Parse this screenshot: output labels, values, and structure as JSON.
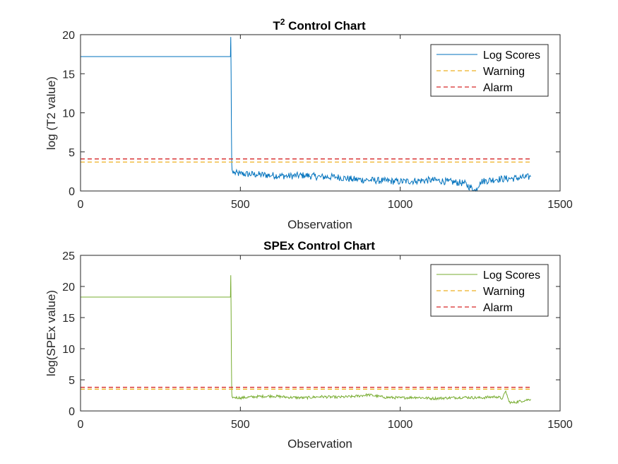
{
  "chart_data": [
    {
      "type": "line",
      "title": "T2 Control Chart",
      "title_main": "T",
      "title_sup": "2",
      "title_rest": " Control Chart",
      "xlabel": "Observation",
      "ylabel": "log (T2 value)",
      "xlim": [
        0,
        1500
      ],
      "ylim": [
        0,
        20
      ],
      "x_ticks": [
        0,
        500,
        1000,
        1500
      ],
      "y_ticks": [
        0,
        5,
        10,
        15,
        20
      ],
      "x_tick_labels": [
        "0",
        "500",
        "1000",
        "1500"
      ],
      "y_tick_labels": [
        "0",
        "5",
        "10",
        "15",
        "20"
      ],
      "grid": false,
      "legend_position": "top-right",
      "series": [
        {
          "name": "Log Scores",
          "color": "#0072BD",
          "style": "solid",
          "x": [
            0,
            469,
            470,
            471,
            472,
            473,
            474,
            475,
            476,
            477,
            478,
            480,
            500,
            550,
            600,
            650,
            700,
            750,
            800,
            850,
            900,
            950,
            1000,
            1050,
            1100,
            1150,
            1200,
            1236,
            1250,
            1300,
            1350,
            1408
          ],
          "y": [
            17.2,
            17.2,
            19.7,
            15.0,
            8.0,
            3.5,
            2.7,
            2.6,
            2.4,
            2.3,
            2.5,
            2.3,
            2.2,
            2.1,
            2.0,
            1.9,
            2.0,
            1.8,
            1.8,
            1.5,
            1.4,
            1.3,
            1.2,
            1.3,
            1.4,
            1.2,
            1.0,
            0.0,
            1.2,
            1.5,
            1.6,
            1.8
          ]
        },
        {
          "name": "Warning",
          "color": "#EDB120",
          "style": "dashed",
          "x": [
            0,
            1408
          ],
          "y": [
            3.7,
            3.7
          ]
        },
        {
          "name": "Alarm",
          "color": "#D62728",
          "style": "dashed",
          "x": [
            0,
            1408
          ],
          "y": [
            4.1,
            4.1
          ]
        }
      ]
    },
    {
      "type": "line",
      "title": "SPEx Control Chart",
      "title_main": "SPEx Control Chart",
      "title_sup": "",
      "title_rest": "",
      "xlabel": "Observation",
      "ylabel": "log(SPEx value)",
      "xlim": [
        0,
        1500
      ],
      "ylim": [
        0,
        25
      ],
      "x_ticks": [
        0,
        500,
        1000,
        1500
      ],
      "y_ticks": [
        0,
        5,
        10,
        15,
        20,
        25
      ],
      "x_tick_labels": [
        "0",
        "500",
        "1000",
        "1500"
      ],
      "y_tick_labels": [
        "0",
        "5",
        "10",
        "15",
        "20",
        "25"
      ],
      "grid": false,
      "legend_position": "top-right",
      "series": [
        {
          "name": "Log Scores",
          "color": "#77AC30",
          "style": "solid",
          "x": [
            0,
            469,
            470,
            471,
            472,
            473,
            474,
            475,
            476,
            477,
            480,
            500,
            550,
            600,
            650,
            700,
            750,
            800,
            850,
            900,
            950,
            1000,
            1050,
            1100,
            1150,
            1200,
            1250,
            1300,
            1320,
            1330,
            1340,
            1350,
            1408
          ],
          "y": [
            18.3,
            18.3,
            21.8,
            16.0,
            8.0,
            3.0,
            2.3,
            2.2,
            2.1,
            2.2,
            2.2,
            2.1,
            2.3,
            2.4,
            2.2,
            2.1,
            2.3,
            2.2,
            2.3,
            2.6,
            2.2,
            2.1,
            2.2,
            2.0,
            2.1,
            2.2,
            2.1,
            2.3,
            2.0,
            3.2,
            1.5,
            1.3,
            1.9
          ]
        },
        {
          "name": "Warning",
          "color": "#EDB120",
          "style": "dashed",
          "x": [
            0,
            1408
          ],
          "y": [
            3.5,
            3.5
          ]
        },
        {
          "name": "Alarm",
          "color": "#D62728",
          "style": "dashed",
          "x": [
            0,
            1408
          ],
          "y": [
            3.8,
            3.8
          ]
        }
      ]
    }
  ]
}
